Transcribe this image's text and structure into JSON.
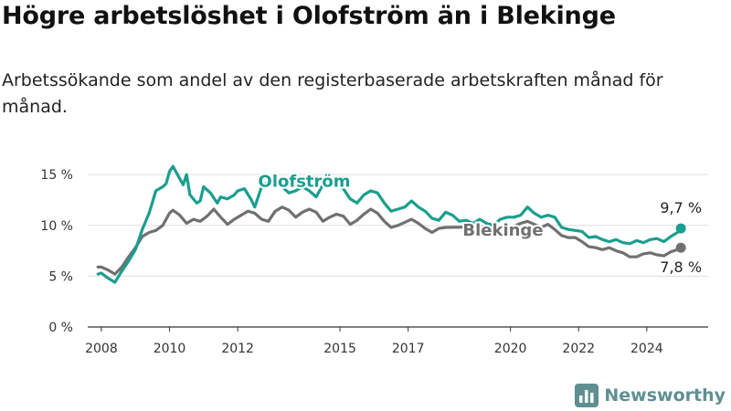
{
  "chart_data": {
    "type": "line",
    "title": "Högre arbetslöshet i Olofström än i Blekinge",
    "subtitle": "Arbetssökande som andel av den registerbaserade arbetskraften månad för månad.",
    "x_ticks": [
      "2008",
      "2010",
      "2012",
      "2015",
      "2017",
      "2020",
      "2022",
      "2024"
    ],
    "y_ticks": [
      "0 %",
      "5 %",
      "10 %",
      "15 %"
    ],
    "ylim": [
      0,
      16
    ],
    "xlim": [
      2007.6,
      2025.8
    ],
    "grid": true,
    "series": [
      {
        "name": "Olofström",
        "color": "#1a9e8f",
        "end_label": "9,7 %",
        "points": [
          [
            2007.9,
            5.2
          ],
          [
            2008.0,
            5.3
          ],
          [
            2008.2,
            4.8
          ],
          [
            2008.4,
            4.4
          ],
          [
            2008.6,
            5.5
          ],
          [
            2008.8,
            6.5
          ],
          [
            2009.0,
            7.6
          ],
          [
            2009.2,
            9.6
          ],
          [
            2009.4,
            11.2
          ],
          [
            2009.6,
            13.4
          ],
          [
            2009.8,
            13.8
          ],
          [
            2009.9,
            14.1
          ],
          [
            2010.0,
            15.3
          ],
          [
            2010.1,
            15.8
          ],
          [
            2010.3,
            14.6
          ],
          [
            2010.4,
            14.0
          ],
          [
            2010.5,
            15.0
          ],
          [
            2010.6,
            13.0
          ],
          [
            2010.8,
            12.2
          ],
          [
            2010.9,
            12.4
          ],
          [
            2011.0,
            13.8
          ],
          [
            2011.2,
            13.2
          ],
          [
            2011.4,
            12.2
          ],
          [
            2011.5,
            12.8
          ],
          [
            2011.7,
            12.6
          ],
          [
            2011.9,
            13.0
          ],
          [
            2012.0,
            13.4
          ],
          [
            2012.2,
            13.6
          ],
          [
            2012.4,
            12.5
          ],
          [
            2012.5,
            11.8
          ],
          [
            2012.7,
            13.8
          ],
          [
            2012.9,
            14.3
          ],
          [
            2013.1,
            14.2
          ],
          [
            2013.3,
            13.8
          ],
          [
            2013.5,
            13.2
          ],
          [
            2013.7,
            13.4
          ],
          [
            2013.9,
            13.8
          ],
          [
            2014.1,
            13.4
          ],
          [
            2014.3,
            12.8
          ],
          [
            2014.5,
            14.0
          ],
          [
            2014.7,
            14.6
          ],
          [
            2014.9,
            14.4
          ],
          [
            2015.1,
            13.6
          ],
          [
            2015.3,
            12.6
          ],
          [
            2015.5,
            12.2
          ],
          [
            2015.7,
            13.0
          ],
          [
            2015.9,
            13.4
          ],
          [
            2016.1,
            13.2
          ],
          [
            2016.3,
            12.2
          ],
          [
            2016.5,
            11.4
          ],
          [
            2016.7,
            11.6
          ],
          [
            2016.9,
            11.8
          ],
          [
            2017.1,
            12.4
          ],
          [
            2017.3,
            11.8
          ],
          [
            2017.5,
            11.4
          ],
          [
            2017.7,
            10.7
          ],
          [
            2017.9,
            10.5
          ],
          [
            2018.1,
            11.3
          ],
          [
            2018.3,
            11.0
          ],
          [
            2018.5,
            10.4
          ],
          [
            2018.7,
            10.5
          ],
          [
            2018.9,
            10.2
          ],
          [
            2019.1,
            10.6
          ],
          [
            2019.3,
            10.2
          ],
          [
            2019.5,
            10.0
          ],
          [
            2019.7,
            10.6
          ],
          [
            2019.9,
            10.8
          ],
          [
            2020.1,
            10.8
          ],
          [
            2020.3,
            11.0
          ],
          [
            2020.5,
            11.8
          ],
          [
            2020.7,
            11.2
          ],
          [
            2020.9,
            10.8
          ],
          [
            2021.1,
            11.0
          ],
          [
            2021.3,
            10.8
          ],
          [
            2021.5,
            9.8
          ],
          [
            2021.7,
            9.6
          ],
          [
            2021.9,
            9.5
          ],
          [
            2022.1,
            9.4
          ],
          [
            2022.3,
            8.8
          ],
          [
            2022.5,
            8.9
          ],
          [
            2022.7,
            8.6
          ],
          [
            2022.9,
            8.4
          ],
          [
            2023.1,
            8.6
          ],
          [
            2023.3,
            8.3
          ],
          [
            2023.5,
            8.2
          ],
          [
            2023.7,
            8.5
          ],
          [
            2023.9,
            8.3
          ],
          [
            2024.1,
            8.6
          ],
          [
            2024.3,
            8.7
          ],
          [
            2024.5,
            8.4
          ],
          [
            2024.7,
            8.9
          ],
          [
            2024.9,
            9.3
          ],
          [
            2025.0,
            9.7
          ]
        ]
      },
      {
        "name": "Blekinge",
        "color": "#707070",
        "end_label": "7,8 %",
        "points": [
          [
            2007.9,
            5.9
          ],
          [
            2008.0,
            5.9
          ],
          [
            2008.2,
            5.6
          ],
          [
            2008.4,
            5.2
          ],
          [
            2008.6,
            5.9
          ],
          [
            2008.8,
            6.9
          ],
          [
            2009.0,
            7.8
          ],
          [
            2009.2,
            8.9
          ],
          [
            2009.4,
            9.3
          ],
          [
            2009.6,
            9.5
          ],
          [
            2009.8,
            10.0
          ],
          [
            2010.0,
            11.2
          ],
          [
            2010.1,
            11.5
          ],
          [
            2010.3,
            11.0
          ],
          [
            2010.5,
            10.2
          ],
          [
            2010.7,
            10.6
          ],
          [
            2010.9,
            10.4
          ],
          [
            2011.1,
            10.9
          ],
          [
            2011.3,
            11.6
          ],
          [
            2011.5,
            10.8
          ],
          [
            2011.7,
            10.1
          ],
          [
            2011.9,
            10.6
          ],
          [
            2012.1,
            11.0
          ],
          [
            2012.3,
            11.4
          ],
          [
            2012.5,
            11.2
          ],
          [
            2012.7,
            10.6
          ],
          [
            2012.9,
            10.4
          ],
          [
            2013.1,
            11.4
          ],
          [
            2013.3,
            11.8
          ],
          [
            2013.5,
            11.5
          ],
          [
            2013.7,
            10.8
          ],
          [
            2013.9,
            11.3
          ],
          [
            2014.1,
            11.6
          ],
          [
            2014.3,
            11.3
          ],
          [
            2014.5,
            10.4
          ],
          [
            2014.7,
            10.8
          ],
          [
            2014.9,
            11.1
          ],
          [
            2015.1,
            10.9
          ],
          [
            2015.3,
            10.1
          ],
          [
            2015.5,
            10.5
          ],
          [
            2015.7,
            11.1
          ],
          [
            2015.9,
            11.6
          ],
          [
            2016.1,
            11.2
          ],
          [
            2016.3,
            10.4
          ],
          [
            2016.5,
            9.8
          ],
          [
            2016.7,
            10.0
          ],
          [
            2016.9,
            10.3
          ],
          [
            2017.1,
            10.6
          ],
          [
            2017.3,
            10.2
          ],
          [
            2017.5,
            9.7
          ],
          [
            2017.7,
            9.3
          ],
          [
            2017.9,
            9.7
          ],
          [
            2018.1,
            9.8
          ],
          [
            2020.1,
            9.9
          ],
          [
            2020.3,
            10.2
          ],
          [
            2020.5,
            10.4
          ],
          [
            2020.7,
            10.1
          ],
          [
            2020.9,
            9.8
          ],
          [
            2021.1,
            10.1
          ],
          [
            2021.3,
            9.6
          ],
          [
            2021.5,
            9.0
          ],
          [
            2021.7,
            8.8
          ],
          [
            2021.9,
            8.8
          ],
          [
            2022.1,
            8.4
          ],
          [
            2022.3,
            7.9
          ],
          [
            2022.5,
            7.8
          ],
          [
            2022.7,
            7.6
          ],
          [
            2022.9,
            7.8
          ],
          [
            2023.1,
            7.5
          ],
          [
            2023.3,
            7.3
          ],
          [
            2023.5,
            6.9
          ],
          [
            2023.7,
            6.9
          ],
          [
            2023.9,
            7.2
          ],
          [
            2024.1,
            7.3
          ],
          [
            2024.3,
            7.1
          ],
          [
            2024.5,
            7.0
          ],
          [
            2024.7,
            7.4
          ],
          [
            2024.9,
            7.6
          ],
          [
            2025.0,
            7.8
          ]
        ]
      }
    ]
  },
  "brand": {
    "name": "Newsworthy",
    "color": "#5f8f91",
    "icon": "bar-chart-logo-icon"
  }
}
